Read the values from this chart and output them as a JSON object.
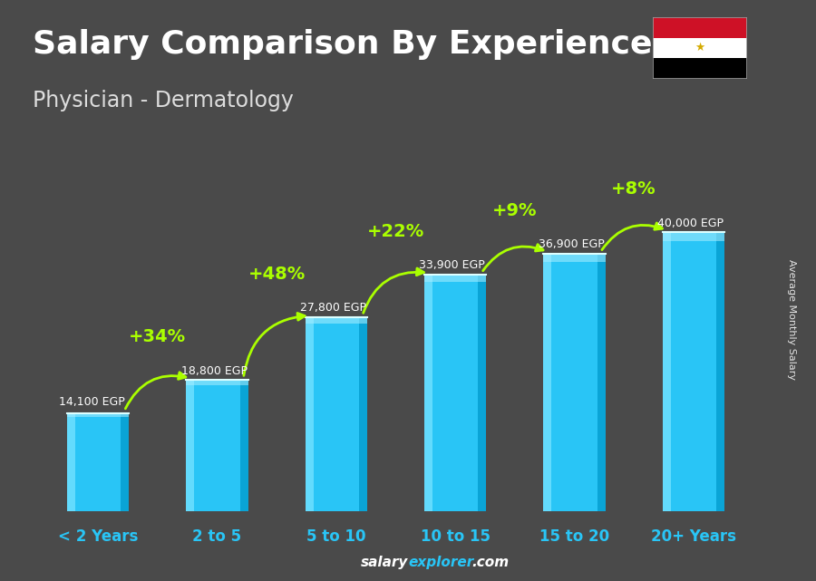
{
  "title": "Salary Comparison By Experience",
  "subtitle": "Physician - Dermatology",
  "categories": [
    "< 2 Years",
    "2 to 5",
    "5 to 10",
    "10 to 15",
    "15 to 20",
    "20+ Years"
  ],
  "values": [
    14100,
    18800,
    27800,
    33900,
    36900,
    40000
  ],
  "bar_color_main": "#29c5f6",
  "bar_color_light": "#6ee0ff",
  "bar_color_dark": "#0099cc",
  "bar_color_darker": "#006fa0",
  "labels": [
    "14,100 EGP",
    "18,800 EGP",
    "27,800 EGP",
    "33,900 EGP",
    "36,900 EGP",
    "40,000 EGP"
  ],
  "pct_labels": [
    "+34%",
    "+48%",
    "+22%",
    "+9%",
    "+8%"
  ],
  "background_color": "#4a4a4a",
  "title_color": "#ffffff",
  "subtitle_color": "#dddddd",
  "label_color": "#ffffff",
  "pct_color": "#aaff00",
  "xlabel_color": "#29c5f6",
  "ylabel_text": "Average Monthly Salary",
  "title_fontsize": 26,
  "subtitle_fontsize": 17,
  "bar_width": 0.52,
  "ylim": [
    0,
    50000
  ],
  "fig_width": 9.0,
  "fig_height": 6.41,
  "arrow_color": "#99ee00",
  "footer_salary_color": "#ffffff",
  "footer_explorer_color": "#29c5f6",
  "footer_dot_com_color": "#ffffff"
}
